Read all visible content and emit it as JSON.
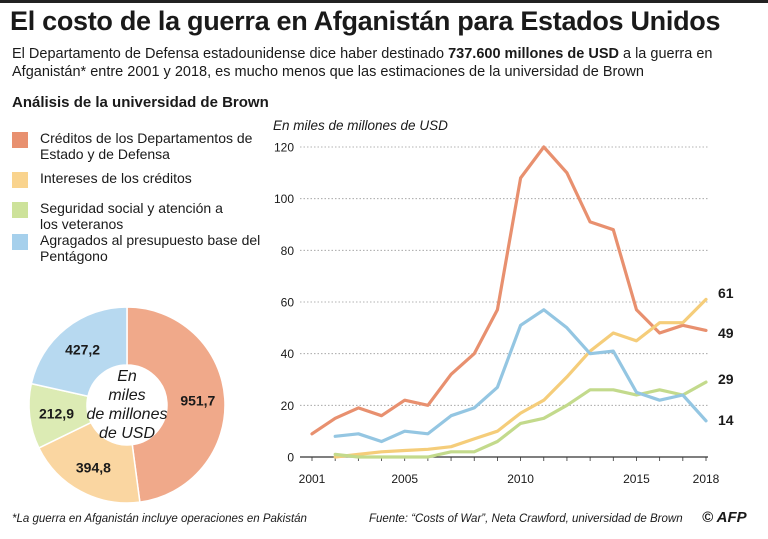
{
  "header": {
    "title": "El costo de la guerra en Afganistán para Estados Unidos",
    "subtitle_pre": "El Departamento de Defensa estadounidense dice haber destinado ",
    "subtitle_bold": "737.600 millones de USD",
    "subtitle_post": " a la guerra en Afganistán* entre 2001 y 2018, es mucho menos que las estimaciones de la universidad de Brown"
  },
  "section_title": "Análisis de la universidad de Brown",
  "legend": [
    {
      "label": "Créditos de los Departamentos de Estado y de Defensa",
      "color": "#e8906f"
    },
    {
      "label": "Intereses de los créditos",
      "color": "#f9d38d"
    },
    {
      "label": "Seguridad social y atención a los veteranos",
      "color": "#cde29a"
    },
    {
      "label": "Agragados al presupuesto base del Pentágono",
      "color": "#a6d0ec"
    }
  ],
  "donut": {
    "center_text": "En miles de millones de USD",
    "center_lines": [
      "En",
      "miles",
      "de millones",
      "de USD"
    ],
    "labels": [
      "951,7",
      "394,8",
      "212,9",
      "427,2"
    ]
  },
  "chart_data": [
    {
      "type": "pie",
      "variant": "donut",
      "categories": [
        "Créditos de los Departamentos de Estado y de Defensa",
        "Intereses de los créditos",
        "Seguridad social y atención a los veteranos",
        "Agragados al presupuesto base del Pentágono"
      ],
      "values": [
        951.7,
        394.8,
        212.9,
        427.2
      ],
      "colors": [
        "#f0a98a",
        "#fad6a1",
        "#dcebb4",
        "#b7d9f0"
      ],
      "center_label": "En miles de millones de USD"
    },
    {
      "type": "line",
      "ylabel": "En miles de millones de USD",
      "ylim": [
        0,
        120
      ],
      "yticks": [
        0,
        20,
        40,
        60,
        80,
        100,
        120
      ],
      "xlim": [
        2001,
        2018
      ],
      "xticks": [
        2001,
        2005,
        2010,
        2015,
        2018
      ],
      "grid": true,
      "series": [
        {
          "name": "Créditos de los Departamentos de Estado y de Defensa",
          "color": "#e8906f",
          "x": [
            2001,
            2002,
            2003,
            2004,
            2005,
            2006,
            2007,
            2008,
            2009,
            2010,
            2011,
            2012,
            2013,
            2014,
            2015,
            2016,
            2017,
            2018
          ],
          "y": [
            9,
            15,
            19,
            16,
            22,
            20,
            32,
            40,
            57,
            108,
            120,
            110,
            91,
            88,
            57,
            48,
            51,
            49
          ],
          "end_label": "49"
        },
        {
          "name": "Intereses de los créditos",
          "color": "#f5cd7a",
          "x": [
            2002,
            2003,
            2004,
            2005,
            2006,
            2007,
            2008,
            2009,
            2010,
            2011,
            2012,
            2013,
            2014,
            2015,
            2016,
            2017,
            2018
          ],
          "y": [
            0,
            1,
            2,
            2.5,
            3,
            4,
            7,
            10,
            17,
            22,
            31,
            41,
            48,
            45,
            52,
            52,
            61
          ],
          "end_label": "61"
        },
        {
          "name": "Seguridad social y atención a los veteranos",
          "color": "#c3da8c",
          "x": [
            2002,
            2003,
            2004,
            2005,
            2006,
            2007,
            2008,
            2009,
            2010,
            2011,
            2012,
            2013,
            2014,
            2015,
            2016,
            2017,
            2018
          ],
          "y": [
            1,
            0,
            0,
            0,
            0,
            2,
            2,
            6,
            13,
            15,
            20,
            26,
            26,
            24,
            26,
            24,
            29
          ],
          "end_label": "29"
        },
        {
          "name": "Agragados al presupuesto base del Pentágono",
          "color": "#94c6e2",
          "x": [
            2002,
            2003,
            2004,
            2005,
            2006,
            2007,
            2008,
            2009,
            2010,
            2011,
            2012,
            2013,
            2014,
            2015,
            2016,
            2017,
            2018
          ],
          "y": [
            8,
            9,
            6,
            10,
            9,
            16,
            19,
            27,
            51,
            57,
            50,
            40,
            41,
            25,
            22,
            24,
            14
          ],
          "end_label": "14"
        }
      ]
    }
  ],
  "footer": {
    "note": "*La guerra en Afganistán incluye operaciones en Pakistán",
    "source": "Fuente: “Costs of War”, Neta Crawford, universidad de Brown",
    "logo": "© AFP"
  }
}
